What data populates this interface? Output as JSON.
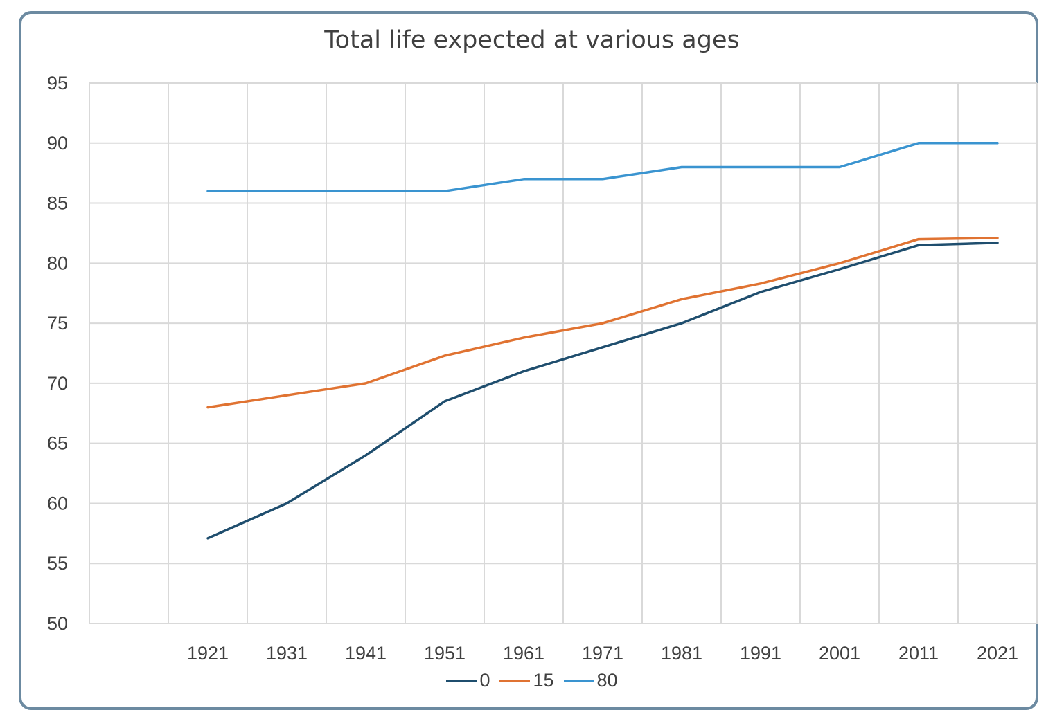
{
  "chart_data": {
    "type": "line",
    "title": "Total life expected at various ages",
    "xlabel": "",
    "ylabel": "",
    "categories": [
      "1921",
      "1931",
      "1941",
      "1951",
      "1961",
      "1971",
      "1981",
      "1991",
      "2001",
      "2011",
      "2021"
    ],
    "ylim": [
      50,
      95
    ],
    "yticks": [
      50,
      55,
      60,
      65,
      70,
      75,
      80,
      85,
      90,
      95
    ],
    "grid": true,
    "legend": "bottom",
    "series": [
      {
        "name": "0",
        "color": "#1f4e6e",
        "values": [
          57.1,
          60.0,
          64.0,
          68.5,
          71.0,
          73.0,
          75.0,
          77.6,
          79.5,
          81.5,
          81.7
        ]
      },
      {
        "name": "15",
        "color": "#e07332",
        "values": [
          68.0,
          69.0,
          70.0,
          72.3,
          73.8,
          75.0,
          77.0,
          78.3,
          80.0,
          82.0,
          82.1
        ]
      },
      {
        "name": "80",
        "color": "#3a94d0",
        "values": [
          86.0,
          86.0,
          86.0,
          86.0,
          87.0,
          87.0,
          88.0,
          88.0,
          88.0,
          90.0,
          90.0
        ]
      }
    ]
  }
}
